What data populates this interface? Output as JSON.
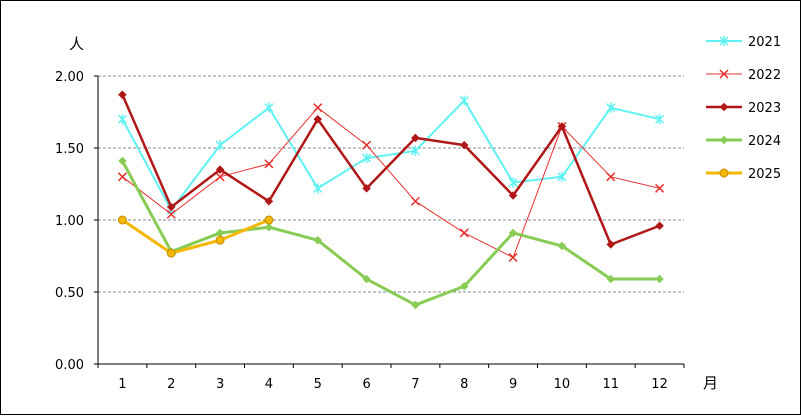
{
  "chart_data": {
    "type": "line",
    "yunit": "人",
    "xunit": "月",
    "ylim": [
      0,
      2
    ],
    "yticks": [
      "0.00",
      "0.50",
      "1.00",
      "1.50",
      "2.00"
    ],
    "categories": [
      "1",
      "2",
      "3",
      "4",
      "5",
      "6",
      "7",
      "8",
      "9",
      "10",
      "11",
      "12"
    ],
    "grid": "horizontal dashed",
    "legend": "right",
    "series": [
      {
        "name": "2021",
        "color": "#5ff2f2",
        "marker": "star",
        "width": 2,
        "values": [
          1.7,
          1.07,
          1.52,
          1.78,
          1.22,
          1.43,
          1.48,
          1.83,
          1.26,
          1.3,
          1.78,
          1.7
        ]
      },
      {
        "name": "2022",
        "color": "#e83030",
        "marker": "x",
        "width": 1,
        "values": [
          1.3,
          1.04,
          1.3,
          1.39,
          1.78,
          1.52,
          1.13,
          0.91,
          0.74,
          1.65,
          1.3,
          1.22
        ]
      },
      {
        "name": "2023",
        "color": "#b01818",
        "marker": "diamond",
        "width": 2.5,
        "values": [
          1.87,
          1.09,
          1.35,
          1.13,
          1.7,
          1.22,
          1.57,
          1.52,
          1.17,
          1.65,
          0.83,
          0.96
        ]
      },
      {
        "name": "2024",
        "color": "#88cc55",
        "marker": "diamond",
        "width": 3,
        "values": [
          1.41,
          0.78,
          0.91,
          0.95,
          0.86,
          0.59,
          0.41,
          0.54,
          0.91,
          0.82,
          0.59,
          0.59
        ]
      },
      {
        "name": "2025",
        "color": "#f5b800",
        "marker": "circle",
        "width": 3,
        "values": [
          1.0,
          0.77,
          0.86,
          1.0,
          null,
          null,
          null,
          null,
          null,
          null,
          null,
          null
        ]
      }
    ]
  }
}
